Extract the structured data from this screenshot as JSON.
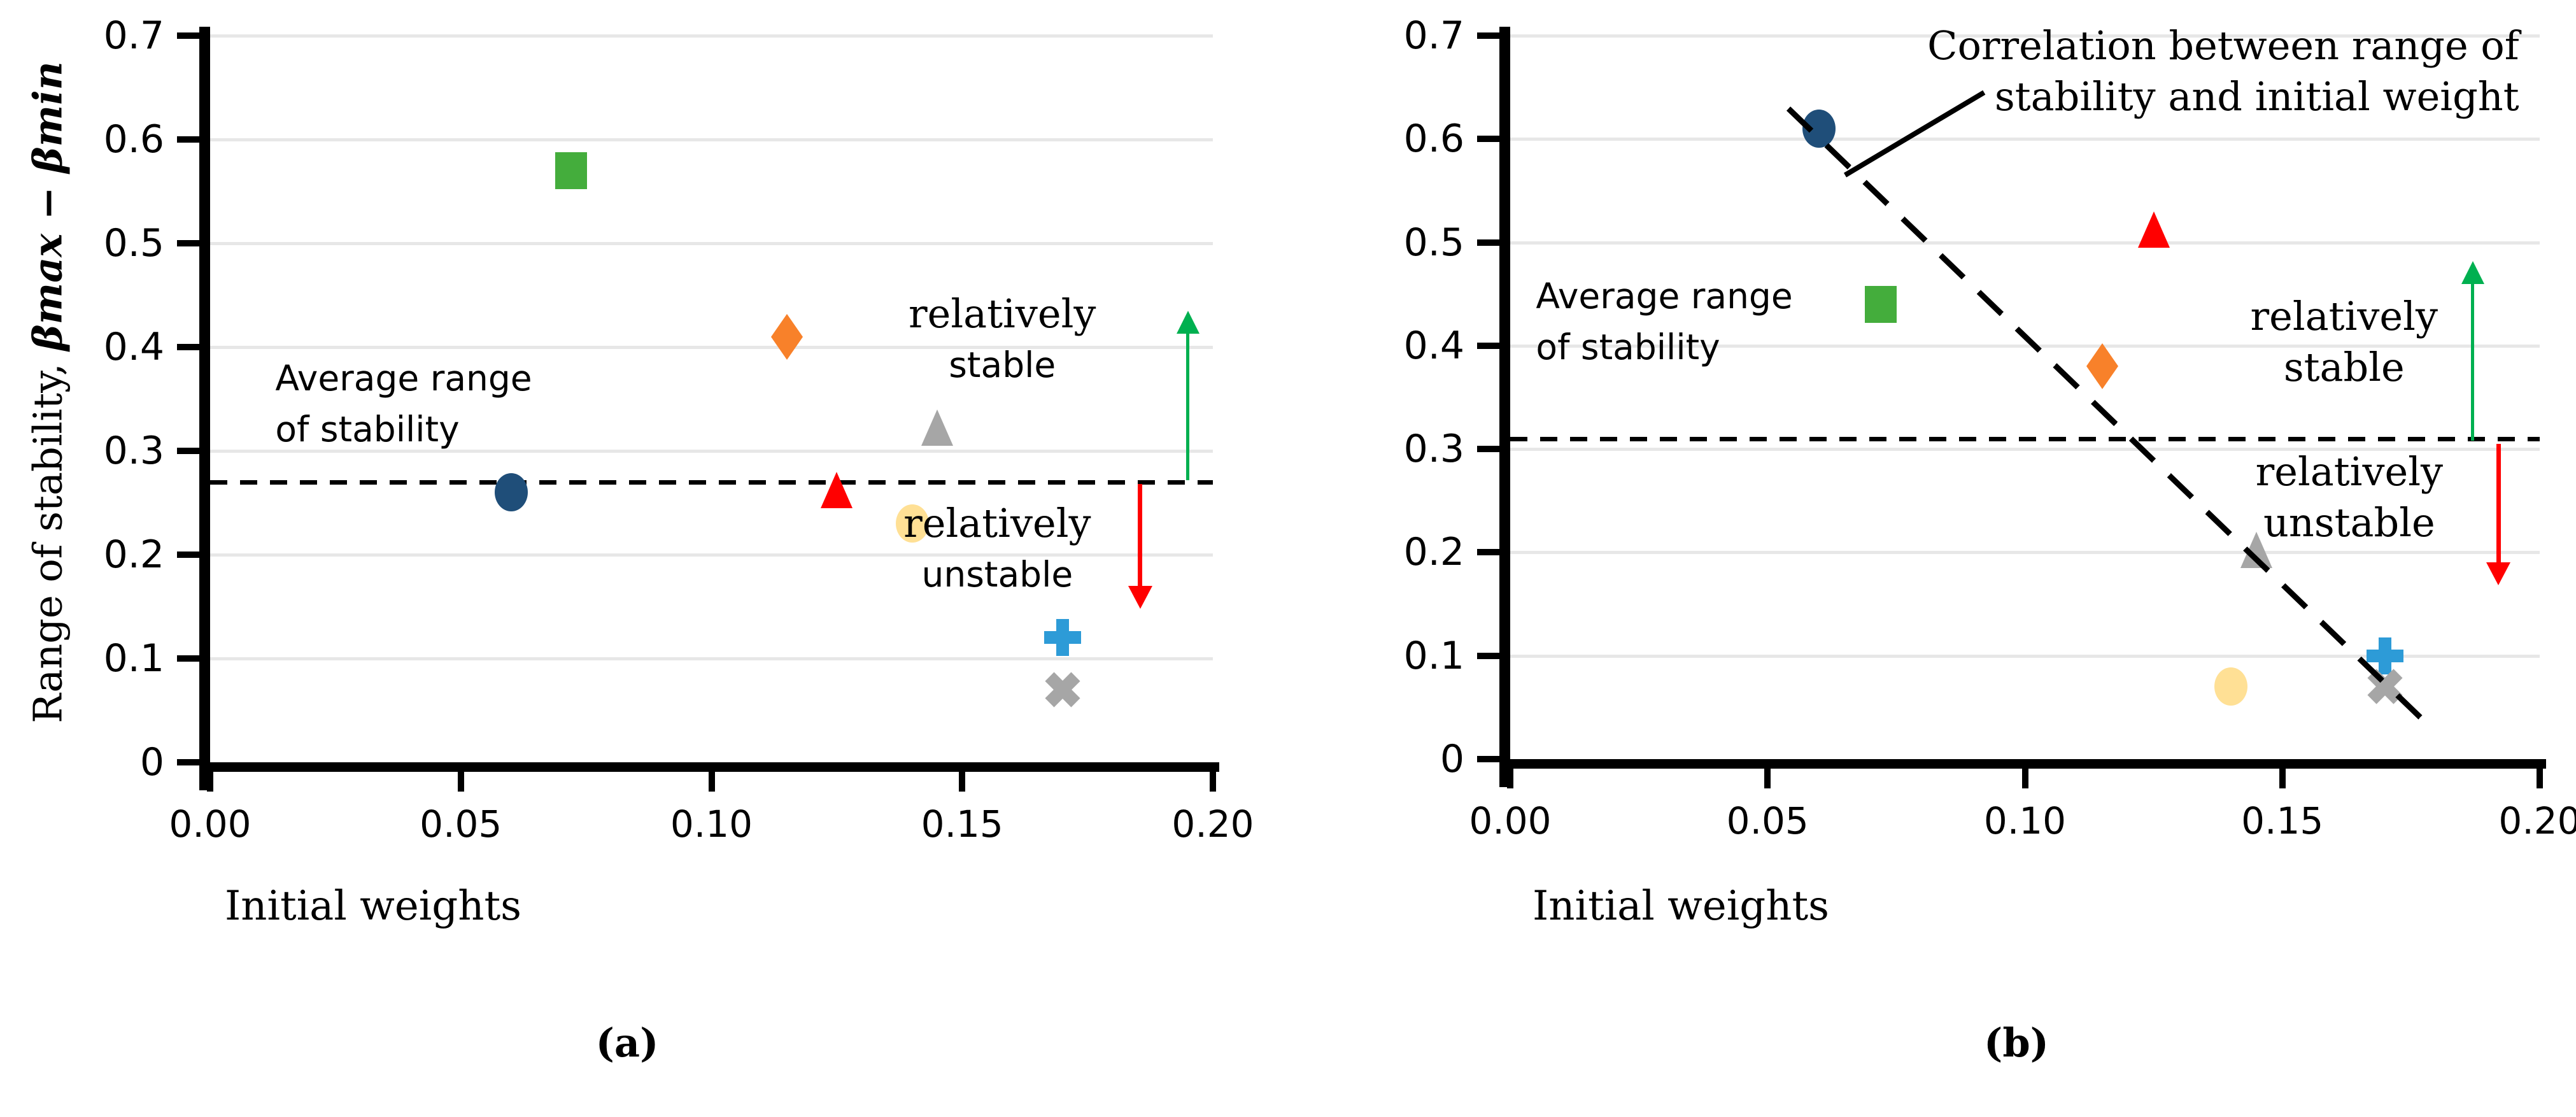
{
  "figure": {
    "background": "#FFFFFF",
    "axis_color": "#000000",
    "grid_color": "#E7E7E7"
  },
  "chart_data": [
    {
      "id": "a",
      "type": "scatter",
      "caption": "(a)",
      "xlabel": "Initial weights",
      "ylabel": {
        "regular": "Range of stability, ",
        "bold_italic": "βmax − βmin"
      },
      "xlim": [
        0,
        0.2
      ],
      "ylim": [
        0,
        0.7
      ],
      "grid": "horizontal",
      "legend": "none",
      "x_ticks": {
        "values": [
          0,
          0.05,
          0.1,
          0.15,
          0.2
        ],
        "labels": [
          "0.00",
          "0.05",
          "0.10",
          "0.15",
          "0.20"
        ]
      },
      "y_ticks": {
        "values": [
          0.7,
          0.6,
          0.5,
          0.4,
          0.3,
          0.2,
          0.1,
          0
        ],
        "labels": [
          "0.7",
          "0.6",
          "0.5",
          "0.4",
          "0.3",
          "0.2",
          "0.1",
          "0"
        ]
      },
      "average_line": {
        "value": 0.27,
        "style": "dashed",
        "color": "#000000"
      },
      "points": [
        {
          "name": "navy-circle",
          "marker": "circle",
          "color": "#1F4E79",
          "x": 0.06,
          "y": 0.26
        },
        {
          "name": "green-square",
          "marker": "square",
          "color": "#44AD3C",
          "x": 0.072,
          "y": 0.57
        },
        {
          "name": "orange-diamond",
          "marker": "diamond",
          "color": "#F8812A",
          "x": 0.115,
          "y": 0.41
        },
        {
          "name": "red-triangle",
          "marker": "triangle",
          "color": "#FF0000",
          "x": 0.125,
          "y": 0.26
        },
        {
          "name": "gray-triangle",
          "marker": "triangle",
          "color": "#A6A6A6",
          "x": 0.145,
          "y": 0.32
        },
        {
          "name": "yellow-circle",
          "marker": "circle",
          "color": "#FFE095",
          "x": 0.14,
          "y": 0.23
        },
        {
          "name": "blue-plus",
          "marker": "plus",
          "color": "#2D9BD7",
          "x": 0.17,
          "y": 0.12
        },
        {
          "name": "gray-x",
          "marker": "x",
          "color": "#A6A6A6",
          "x": 0.17,
          "y": 0.07
        }
      ],
      "annotations": [
        {
          "name": "average-range-label",
          "lines": [
            "Average range",
            "of stability"
          ],
          "fonts": [
            "sans",
            "sans"
          ],
          "x": 0.013,
          "y": 0.37,
          "align": "left"
        },
        {
          "name": "relatively-stable-label",
          "lines": [
            "relatively",
            "stable"
          ],
          "fonts": [
            "serif",
            "sans"
          ],
          "x": 0.158,
          "y": 0.432,
          "align": "center"
        },
        {
          "name": "relatively-unstable-label",
          "lines": [
            "relatively",
            "unstable"
          ],
          "fonts": [
            "serif",
            "sans"
          ],
          "x": 0.157,
          "y": 0.23,
          "align": "center"
        }
      ],
      "arrows": [
        {
          "name": "stable-direction-arrow",
          "color": "#00B050",
          "x": 0.195,
          "y_from": 0.272,
          "y_to": 0.435
        },
        {
          "name": "unstable-direction-arrow",
          "color": "#FF0000",
          "x": 0.1855,
          "y_from": 0.268,
          "y_to": 0.148
        }
      ]
    },
    {
      "id": "b",
      "type": "scatter",
      "caption": "(b)",
      "xlabel": "Initial weights",
      "ylabel": null,
      "xlim": [
        0,
        0.2
      ],
      "ylim": [
        0,
        0.7
      ],
      "grid": "horizontal",
      "legend": "none",
      "x_ticks": {
        "values": [
          0,
          0.05,
          0.1,
          0.15,
          0.2
        ],
        "labels": [
          "0.00",
          "0.05",
          "0.10",
          "0.15",
          "0.20"
        ]
      },
      "y_ticks": {
        "values": [
          0.7,
          0.6,
          0.5,
          0.4,
          0.3,
          0.2,
          0.1,
          0
        ],
        "labels": [
          "0.7",
          "0.6",
          "0.5",
          "0.4",
          "0.3",
          "0.2",
          "0.1",
          "0"
        ]
      },
      "average_line": {
        "value": 0.31,
        "style": "dashed",
        "color": "#000000"
      },
      "trend_line": {
        "style": "dashed",
        "color": "#000000",
        "x1": 0.054,
        "y1": 0.63,
        "x2": 0.178,
        "y2": 0.035
      },
      "callout_line": {
        "style": "solid",
        "color": "#000000",
        "x1": 0.065,
        "y1": 0.565,
        "x2": 0.092,
        "y2": 0.645
      },
      "points": [
        {
          "name": "navy-circle",
          "marker": "circle",
          "color": "#1F4E79",
          "x": 0.06,
          "y": 0.61
        },
        {
          "name": "green-square",
          "marker": "square",
          "color": "#44AD3C",
          "x": 0.072,
          "y": 0.44
        },
        {
          "name": "orange-diamond",
          "marker": "diamond",
          "color": "#F8812A",
          "x": 0.115,
          "y": 0.38
        },
        {
          "name": "red-triangle",
          "marker": "triangle",
          "color": "#FF0000",
          "x": 0.125,
          "y": 0.51
        },
        {
          "name": "gray-triangle",
          "marker": "triangle",
          "color": "#A6A6A6",
          "x": 0.145,
          "y": 0.2
        },
        {
          "name": "yellow-circle",
          "marker": "circle",
          "color": "#FFE095",
          "x": 0.14,
          "y": 0.07
        },
        {
          "name": "blue-plus",
          "marker": "plus",
          "color": "#2D9BD7",
          "x": 0.17,
          "y": 0.1
        },
        {
          "name": "gray-x",
          "marker": "x",
          "color": "#A6A6A6",
          "x": 0.17,
          "y": 0.07
        }
      ],
      "annotations": [
        {
          "name": "correlation-label",
          "lines": [
            "Correlation between range of",
            "stability and initial weight"
          ],
          "fonts": [
            "serif",
            "serif"
          ],
          "x": 0.196,
          "y": 0.69,
          "align": "right"
        },
        {
          "name": "average-range-label",
          "lines": [
            "Average range",
            "of stability"
          ],
          "fonts": [
            "sans",
            "sans"
          ],
          "x": 0.005,
          "y": 0.448,
          "align": "left"
        },
        {
          "name": "relatively-stable-label",
          "lines": [
            "relatively",
            "stable"
          ],
          "fonts": [
            "serif",
            "serif"
          ],
          "x": 0.162,
          "y": 0.428,
          "align": "center"
        },
        {
          "name": "relatively-unstable-label",
          "lines": [
            "relatively",
            "unstable"
          ],
          "fonts": [
            "serif",
            "serif"
          ],
          "x": 0.163,
          "y": 0.278,
          "align": "center"
        }
      ],
      "arrows": [
        {
          "name": "stable-direction-arrow",
          "color": "#00B050",
          "x": 0.187,
          "y_from": 0.308,
          "y_to": 0.482
        },
        {
          "name": "unstable-direction-arrow",
          "color": "#FF0000",
          "x": 0.192,
          "y_from": 0.305,
          "y_to": 0.168
        }
      ]
    }
  ]
}
